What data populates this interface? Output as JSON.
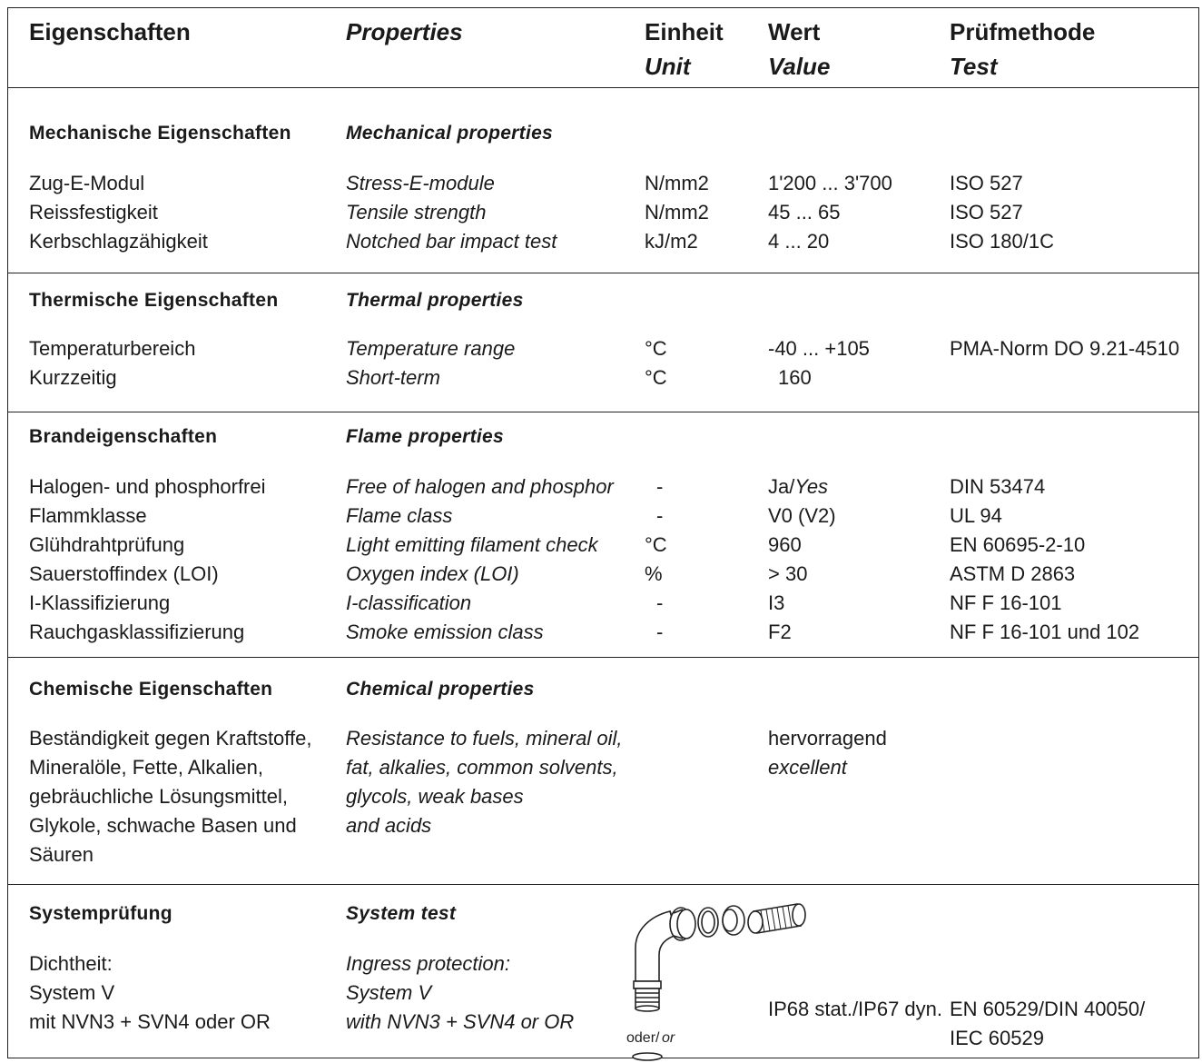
{
  "header": {
    "col1": "Eigenschaften",
    "col2": "Properties",
    "col3_de": "Einheit",
    "col3_en": "Unit",
    "col4_de": "Wert",
    "col4_en": "Value",
    "col5_de": "Prüfmethode",
    "col5_en": "Test"
  },
  "mechanical": {
    "title_de": "Mechanische Eigenschaften",
    "title_en": "Mechanical properties",
    "rows": [
      {
        "de": "Zug-E-Modul",
        "en": "Stress-E-module",
        "unit": "N/mm2",
        "value": "1'200 ... 3'700",
        "test": "ISO 527"
      },
      {
        "de": "Reissfestigkeit",
        "en": "Tensile strength",
        "unit": "N/mm2",
        "value": "45 ... 65",
        "test": "ISO 527"
      },
      {
        "de": "Kerbschlagzähigkeit",
        "en": "Notched bar impact test",
        "unit": "kJ/m2",
        "value": "4 ... 20",
        "test": "ISO 180/1C"
      }
    ]
  },
  "thermal": {
    "title_de": "Thermische Eigenschaften",
    "title_en": "Thermal properties",
    "rows": [
      {
        "de": "Temperaturbereich",
        "en": "Temperature range",
        "unit": "°C",
        "value": "-40 ... +105",
        "test": "PMA-Norm DO 9.21-4510"
      },
      {
        "de": "Kurzzeitig",
        "en": "Short-term",
        "unit": "°C",
        "value": "160",
        "test": ""
      }
    ]
  },
  "flame": {
    "title_de": "Brandeigenschaften",
    "title_en": "Flame properties",
    "rows": [
      {
        "de": "Halogen- und phosphorfrei",
        "en": "Free of halogen and phosphor",
        "unit": "-",
        "value_de": "Ja/",
        "value_en": "Yes",
        "test": "DIN 53474"
      },
      {
        "de": "Flammklasse",
        "en": "Flame class",
        "unit": "-",
        "value": "V0 (V2)",
        "test": "UL 94"
      },
      {
        "de": "Glühdrahtprüfung",
        "en": "Light emitting filament check",
        "unit": "°C",
        "value": "960",
        "test": "EN 60695-2-10"
      },
      {
        "de": "Sauerstoffindex (LOI)",
        "en": "Oxygen index (LOI)",
        "unit": "%",
        "value": "> 30",
        "test": "ASTM D 2863"
      },
      {
        "de": "I-Klassifizierung",
        "en": "I-classification",
        "unit": "-",
        "value": "I3",
        "test": "NF F 16-101"
      },
      {
        "de": "Rauchgasklassifizierung",
        "en": "Smoke emission class",
        "unit": "-",
        "value": "F2",
        "test": "NF F 16-101 und 102"
      }
    ]
  },
  "chemical": {
    "title_de": "Chemische Eigenschaften",
    "title_en": "Chemical properties",
    "de_lines": [
      "Beständigkeit gegen Kraftstoffe,",
      "Mineralöle, Fette, Alkalien,",
      "gebräuchliche Lösungsmittel,",
      "Glykole, schwache Basen und",
      "Säuren"
    ],
    "en_lines": [
      "Resistance to fuels, mineral oil,",
      "fat, alkalies, common solvents,",
      "glycols, weak bases",
      "and acids"
    ],
    "value_de": "hervorragend",
    "value_en": "excellent"
  },
  "system": {
    "title_de": "Systemprüfung",
    "title_en": "System test",
    "de_lines": [
      "Dichtheit:",
      "System V",
      "mit NVN3 + SVN4 oder OR"
    ],
    "en_lines": [
      "Ingress protection:",
      "System V",
      "with NVN3 + SVN4 or OR"
    ],
    "image_label_de": "oder/",
    "image_label_en": "or",
    "value": "IP68 stat./IP67 dyn.",
    "test_lines": [
      "EN 60529/DIN 40050/",
      "IEC 60529"
    ]
  }
}
